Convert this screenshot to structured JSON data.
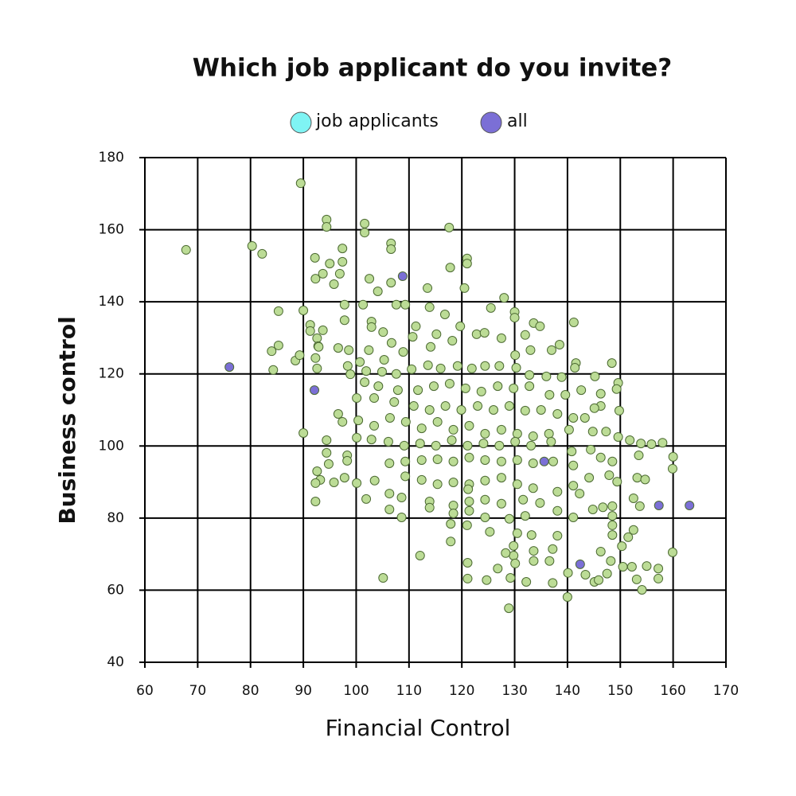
{
  "chart_data": {
    "type": "scatter",
    "title": "Which job applicant do you invite?",
    "xlabel": "Financial Control",
    "ylabel": "Business control",
    "xlim": [
      60,
      170
    ],
    "xticks": [
      60,
      70,
      80,
      90,
      100,
      110,
      120,
      130,
      140,
      150,
      160,
      170
    ],
    "ylim": [
      40,
      180
    ],
    "yticks": [
      40,
      60,
      80,
      100,
      120,
      140,
      160,
      180
    ],
    "grid": true,
    "legend": "top",
    "series": [
      {
        "name": "job applicants",
        "color": "#7ff4f4",
        "marker_color": "#bcdc96",
        "x": [
          67.8,
          80.3,
          82.2,
          89.5,
          94.4,
          94.4,
          101.6,
          101.6,
          117.6,
          106.6,
          106.6,
          92.2,
          97.4,
          97.4,
          95,
          121,
          121,
          117.8,
          102.5,
          106.6,
          120.5,
          113.5,
          92.3,
          93.7,
          95.8,
          96.9,
          104.1,
          128,
          125.5,
          107.6,
          109.3,
          113.9,
          116.8,
          130,
          130,
          85.3,
          90,
          97.8,
          97.8,
          101.3,
          91.3,
          91.3,
          93.7,
          102.9,
          102.9,
          111.3,
          119.7,
          133.6,
          134.8,
          141.2,
          122.8,
          124.3,
          127.5,
          132,
          92.6,
          92.8,
          96.6,
          98.6,
          84,
          85.3,
          88.5,
          89.3,
          84.3,
          92.6,
          92.3,
          92.9,
          105.1,
          106.7,
          110.7,
          115.2,
          118.2,
          114.1,
          108.9,
          102.4,
          98.4,
          100.7,
          105.3,
          138.5,
          137,
          133,
          130.1,
          141.6,
          148.4,
          145.2,
          149.6,
          149.3,
          146.3,
          146.3,
          145.1,
          149.8,
          141.4,
          138.9,
          136,
          132.8,
          130.3,
          127.1,
          124.4,
          121.9,
          119.2,
          116,
          113.6,
          110.5,
          107.6,
          104.9,
          101.9,
          98.9,
          101.6,
          104.2,
          107.9,
          111.7,
          114.7,
          117.7,
          120.7,
          123.7,
          126.8,
          129.8,
          132.8,
          136.6,
          139.6,
          142.6,
          100.1,
          103.4,
          107.2,
          110.9,
          113.9,
          116.9,
          119.9,
          123,
          126,
          129,
          132,
          135,
          138.1,
          141.1,
          143.3,
          96.6,
          97.4,
          100.4,
          103.4,
          106.4,
          109.4,
          112.4,
          115.4,
          118.4,
          121.4,
          124.4,
          127.5,
          130.5,
          133.5,
          136.5,
          140.3,
          144.8,
          147.3,
          149.6,
          151.8,
          153.9,
          155.9,
          158,
          90,
          94.4,
          100.1,
          102.9,
          106.1,
          109.1,
          112.1,
          115.1,
          118.1,
          121.1,
          124.1,
          127.1,
          130.1,
          133.1,
          136.9,
          140.8,
          144.4,
          146.3,
          148.5,
          153.5,
          160,
          159.9,
          94.4,
          94.8,
          98.3,
          98.3,
          92.6,
          93.2,
          92.3,
          95.8,
          97.8,
          100.1,
          103.5,
          106.3,
          109.3,
          112.4,
          115.4,
          118.4,
          121.4,
          124.4,
          127.5,
          130.5,
          133.5,
          137.3,
          141.1,
          144.1,
          147.9,
          149.4,
          153.2,
          154.7,
          109.3,
          112.4,
          115.4,
          118.4,
          121.4,
          124.4,
          127.5,
          130.5,
          133.5,
          138.1,
          141.1,
          142.3,
          101.9,
          106.3,
          108.6,
          113.9,
          118.4,
          121.4,
          124.4,
          127.5,
          131.6,
          134.8,
          92.3,
          106.3,
          108.6,
          113.9,
          118.4,
          121.4,
          124.4,
          129,
          132,
          138.1,
          141.1,
          144.8,
          148.5,
          152.5,
          153.7,
          146.7,
          148.5,
          148.5,
          148.5,
          150.3,
          152.5,
          151.5,
          146.3,
          117.9,
          117.9,
          121,
          125.3,
          130.5,
          133.2,
          138.1,
          137.2,
          129.8,
          129.8,
          128.3,
          133.6,
          112.1,
          121.1,
          126.8,
          130.1,
          133.6,
          136.6,
          148.2,
          150.5,
          152.2,
          155,
          157.2,
          159.9,
          143.4,
          140.1,
          147.5,
          121.1,
          124.7,
          129.2,
          132.2,
          137.2,
          145.1,
          145.9,
          153.1,
          157.2,
          154.1,
          140,
          128.9,
          105.1,
          121.2
        ],
        "values": [
          154.4,
          155.5,
          153.3,
          172.9,
          162.8,
          160.8,
          161.7,
          159.2,
          160.6,
          156.2,
          154.6,
          152.2,
          154.8,
          151.1,
          150.6,
          152,
          150.6,
          149.5,
          146.4,
          145.3,
          143.8,
          143.8,
          146.4,
          147.8,
          144.9,
          147.8,
          142.9,
          141.1,
          138.3,
          139.2,
          139.2,
          138.5,
          136.5,
          137.2,
          135.6,
          137.4,
          137.6,
          139.2,
          134.9,
          139.2,
          133.6,
          131.9,
          132.1,
          134.5,
          133,
          133.2,
          133.2,
          134.1,
          133.2,
          134.3,
          131,
          131.4,
          129.9,
          130.8,
          129.9,
          127.7,
          127.2,
          126.6,
          126.3,
          127.9,
          123.7,
          125.2,
          121.1,
          121.5,
          124.4,
          127.5,
          131.6,
          128.6,
          130.3,
          131,
          129.2,
          127.5,
          126.1,
          126.6,
          122.2,
          123.3,
          123.9,
          128.1,
          126.6,
          126.6,
          125.2,
          123,
          123,
          119.3,
          117.5,
          115.8,
          114.5,
          111.1,
          110.5,
          109.8,
          121.7,
          119.1,
          119.3,
          119.7,
          121.7,
          122.2,
          122.2,
          121.5,
          122.2,
          121.5,
          122.4,
          121.3,
          120,
          120.6,
          120.8,
          119.9,
          117.7,
          116.6,
          115.5,
          115.5,
          116.6,
          117.3,
          116,
          115.1,
          116.6,
          116,
          116.6,
          114.2,
          114.2,
          115.5,
          113.3,
          113.3,
          112.2,
          111.1,
          110,
          111.1,
          110,
          111.1,
          110,
          111.1,
          109.8,
          110,
          108.9,
          107.8,
          107.8,
          108.9,
          106.7,
          107.1,
          105.6,
          107.8,
          106.7,
          104.9,
          106.7,
          104.5,
          105.6,
          103.4,
          104.5,
          103.4,
          102.7,
          103.4,
          104.5,
          104,
          104,
          102.5,
          101.6,
          100.7,
          100.5,
          100.9,
          103.6,
          101.6,
          102.3,
          101.8,
          101.2,
          100.1,
          100.7,
          100.1,
          101.6,
          100.1,
          100.7,
          100.1,
          101.2,
          100.1,
          101.2,
          98.5,
          99,
          96.8,
          95.7,
          97.4,
          97,
          93.7,
          98.1,
          95,
          97.4,
          95.9,
          93,
          90.6,
          89.7,
          89.9,
          91.2,
          89.7,
          90.4,
          95.2,
          95.7,
          96.1,
          96.3,
          95.7,
          96.8,
          96.1,
          95.7,
          96.1,
          95.2,
          95.7,
          94.6,
          91.2,
          91.9,
          90.1,
          91.2,
          90.7,
          91.6,
          90.6,
          89.4,
          89.9,
          89.4,
          90.4,
          91.2,
          89.4,
          88.3,
          87.3,
          89,
          86.8,
          85.3,
          86.8,
          85.7,
          84.6,
          83.5,
          84.6,
          85.1,
          84,
          85.1,
          84.2,
          84.6,
          82.4,
          80.2,
          82.9,
          81.3,
          82,
          80.2,
          79.8,
          80.6,
          82,
          80.2,
          82.4,
          83.3,
          85.5,
          83.3,
          83,
          80.6,
          78,
          75.3,
          72.2,
          76.7,
          74.7,
          70.7,
          78.4,
          73.5,
          78,
          76.2,
          75.8,
          75.3,
          75.1,
          71.4,
          72.3,
          69.6,
          70.3,
          70.9,
          69.6,
          67.6,
          66,
          67.4,
          68.1,
          68.1,
          68.1,
          66.5,
          66.5,
          66.7,
          66,
          70.5,
          64.3,
          64.8,
          64.6,
          63.2,
          62.8,
          63.4,
          62.3,
          62,
          62.3,
          62.8,
          63,
          63.2,
          60.1,
          58.1,
          55,
          63.4,
          88
        ]
      },
      {
        "name": "all",
        "color": "#7b6fd6",
        "marker_color": "#7b6fd6",
        "x": [
          76,
          92.1,
          108.8,
          135.6,
          142.4,
          157.3,
          163.1
        ],
        "values": [
          121.9,
          115.5,
          147.1,
          95.7,
          67.2,
          83.5,
          83.5
        ]
      }
    ]
  }
}
